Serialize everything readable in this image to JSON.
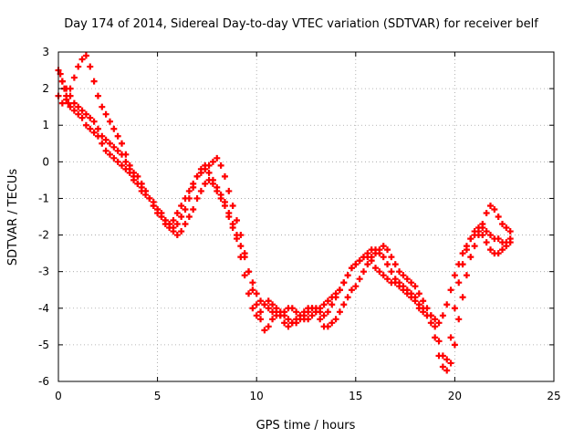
{
  "chart_data": {
    "type": "scatter",
    "title": "Day 174 of 2014, Sidereal Day-to-day VTEC variation (SDTVAR) for receiver belf",
    "xlabel": "GPS time / hours",
    "ylabel": "SDTVAR / TECUs",
    "xlim": [
      0,
      25
    ],
    "ylim": [
      -6,
      3
    ],
    "xticks": [
      "0",
      "5",
      "10",
      "15",
      "20",
      "25"
    ],
    "yticks": [
      "3",
      "2",
      "1",
      "0",
      "-1",
      "-2",
      "-3",
      "-4",
      "-5",
      "-6"
    ],
    "grid": true,
    "marker": "+",
    "color": "#ff0000",
    "series": [
      {
        "x": [
          0.0,
          0.1,
          0.2,
          0.3,
          0.4,
          0.5,
          0.6,
          0.8,
          1.0,
          1.2,
          1.4,
          1.6,
          1.8,
          2.0,
          2.2,
          2.4,
          2.6,
          2.8,
          3.0,
          3.2,
          3.4,
          3.6,
          3.8,
          4.0,
          4.2,
          4.4,
          4.6,
          4.8,
          5.0,
          5.2,
          5.4,
          5.6,
          5.8,
          6.0,
          6.2,
          6.4,
          6.6,
          6.8,
          7.0,
          7.2,
          7.4,
          7.6,
          7.8,
          8.0,
          8.2,
          8.4,
          8.6,
          8.8,
          9.0,
          9.2,
          9.4,
          9.6,
          9.8,
          10.0,
          10.2,
          10.4,
          10.6,
          10.8,
          11.0,
          11.2,
          11.4,
          11.6,
          11.8,
          12.0,
          12.2,
          12.4,
          12.6,
          12.8,
          13.0,
          13.2,
          13.4,
          13.6,
          13.8,
          14.0,
          14.2,
          14.4,
          14.6,
          14.8,
          15.0,
          15.2,
          15.4,
          15.6,
          15.8,
          16.0,
          16.2,
          16.4,
          16.6,
          16.8,
          17.0,
          17.2,
          17.4,
          17.6,
          17.8,
          18.0,
          18.2,
          18.4,
          18.6,
          18.8,
          19.0,
          19.2,
          19.4,
          19.6,
          19.8,
          20.0,
          20.2,
          20.4,
          20.6,
          20.8,
          21.0,
          21.2,
          21.4,
          21.6,
          21.8,
          22.0,
          22.2,
          22.4,
          22.6,
          22.8
        ],
        "y": [
          2.5,
          2.4,
          2.2,
          2.0,
          1.8,
          1.6,
          1.5,
          1.4,
          1.3,
          1.2,
          1.0,
          0.9,
          0.8,
          0.7,
          0.5,
          0.3,
          0.2,
          0.1,
          0.0,
          -0.1,
          -0.2,
          -0.3,
          -0.5,
          -0.6,
          -0.8,
          -0.9,
          -1.0,
          -1.2,
          -1.3,
          -1.5,
          -1.7,
          -1.8,
          -1.9,
          -2.0,
          -1.9,
          -1.7,
          -1.5,
          -1.3,
          -1.0,
          -0.8,
          -0.6,
          -0.5,
          -0.6,
          -0.8,
          -1.0,
          -1.2,
          -1.5,
          -1.8,
          -2.1,
          -2.6,
          -3.1,
          -3.6,
          -4.0,
          -4.2,
          -4.1,
          -3.9,
          -3.8,
          -3.9,
          -4.0,
          -4.1,
          -4.2,
          -4.3,
          -4.4,
          -4.4,
          -4.3,
          -4.2,
          -4.1,
          -4.0,
          -4.0,
          -4.1,
          -4.2,
          -4.1,
          -3.9,
          -3.7,
          -3.5,
          -3.3,
          -3.1,
          -2.9,
          -2.8,
          -2.7,
          -2.6,
          -2.5,
          -2.4,
          -2.4,
          -2.5,
          -2.6,
          -2.8,
          -3.0,
          -3.2,
          -3.3,
          -3.4,
          -3.5,
          -3.6,
          -3.7,
          -3.9,
          -4.0,
          -4.2,
          -4.4,
          -4.8,
          -5.3,
          -5.6,
          -5.4,
          -4.8,
          -4.0,
          -3.3,
          -2.8,
          -2.4,
          -2.1,
          -1.9,
          -1.8,
          -1.8,
          -1.9,
          -2.0,
          -2.1,
          -2.1,
          -2.2,
          -2.2,
          -2.1
        ]
      },
      {
        "x": [
          0.0,
          0.2,
          0.4,
          0.6,
          0.8,
          1.0,
          1.2,
          1.4,
          1.6,
          1.8,
          2.0,
          2.2,
          2.4,
          2.6,
          2.8,
          3.0,
          3.2,
          3.4,
          3.6,
          3.8,
          4.0,
          4.2,
          4.4,
          4.6,
          4.8,
          5.0,
          5.2,
          5.4,
          5.6,
          5.8,
          6.0,
          6.2,
          6.4,
          6.6,
          6.8,
          7.0,
          7.2,
          7.4,
          7.6,
          7.8,
          8.0,
          8.2,
          8.4,
          8.6,
          8.8,
          9.0,
          9.2,
          9.4,
          9.6,
          9.8,
          10.0,
          10.2,
          10.4,
          10.6,
          10.8,
          11.0,
          11.2,
          11.4,
          11.6,
          11.8,
          12.0,
          12.2,
          12.4,
          12.6,
          12.8,
          13.0,
          13.2,
          13.4,
          13.6,
          13.8,
          14.0,
          14.2,
          14.4,
          14.6,
          14.8,
          15.0,
          15.2,
          15.4,
          15.6,
          15.8,
          16.0,
          16.2,
          16.4,
          16.6,
          16.8,
          17.0,
          17.2,
          17.4,
          17.6,
          17.8,
          18.0,
          18.2,
          18.4,
          18.6,
          18.8,
          19.0,
          19.2,
          19.4,
          19.6,
          19.8,
          20.0,
          20.2,
          20.4,
          20.6,
          20.8,
          21.0,
          21.2,
          21.4,
          21.6,
          21.8,
          22.0,
          22.2,
          22.4,
          22.6,
          22.8
        ],
        "y": [
          1.8,
          1.6,
          1.7,
          2.0,
          2.3,
          2.6,
          2.8,
          2.9,
          2.6,
          2.2,
          1.8,
          1.5,
          1.3,
          1.1,
          0.9,
          0.7,
          0.5,
          0.2,
          -0.1,
          -0.3,
          -0.4,
          -0.6,
          -0.8,
          -1.0,
          -1.1,
          -1.3,
          -1.4,
          -1.6,
          -1.7,
          -1.8,
          -1.7,
          -1.5,
          -1.3,
          -1.0,
          -0.7,
          -0.4,
          -0.2,
          -0.1,
          -0.1,
          0.0,
          0.1,
          -0.1,
          -0.4,
          -0.8,
          -1.2,
          -1.6,
          -2.0,
          -2.5,
          -3.0,
          -3.5,
          -3.9,
          -4.3,
          -4.6,
          -4.5,
          -4.3,
          -4.1,
          -4.2,
          -4.4,
          -4.5,
          -4.4,
          -4.3,
          -4.2,
          -4.1,
          -4.0,
          -4.0,
          -4.1,
          -4.3,
          -4.5,
          -4.5,
          -4.4,
          -4.3,
          -4.1,
          -3.9,
          -3.7,
          -3.5,
          -3.4,
          -3.2,
          -3.0,
          -2.8,
          -2.6,
          -2.5,
          -2.4,
          -2.3,
          -2.4,
          -2.6,
          -2.8,
          -3.0,
          -3.1,
          -3.2,
          -3.3,
          -3.4,
          -3.6,
          -3.8,
          -4.0,
          -4.2,
          -4.5,
          -4.9,
          -5.3,
          -5.7,
          -5.5,
          -5.0,
          -4.3,
          -3.7,
          -3.1,
          -2.6,
          -2.3,
          -2.0,
          -1.7,
          -1.4,
          -1.2,
          -1.3,
          -1.5,
          -1.7,
          -1.8,
          -1.9
        ]
      },
      {
        "x": [
          0.2,
          0.4,
          0.6,
          0.8,
          1.0,
          1.2,
          1.4,
          1.6,
          1.8,
          2.0,
          2.2,
          2.4,
          2.6,
          2.8,
          3.0,
          3.2,
          3.4,
          3.6,
          3.8,
          4.0,
          4.2,
          4.4,
          4.6,
          4.8,
          5.0,
          5.2,
          5.4,
          5.6,
          5.8,
          6.0,
          6.2,
          6.4,
          6.6,
          6.8,
          7.0,
          7.2,
          7.4,
          7.6,
          7.8,
          8.0,
          8.2,
          8.4,
          8.6,
          8.8,
          9.0,
          9.2,
          9.4,
          9.6,
          9.8,
          10.0,
          10.2,
          10.4,
          10.6,
          10.8,
          11.0,
          11.2,
          11.4,
          11.6,
          11.8,
          12.0,
          12.2,
          12.4,
          12.6,
          12.8,
          13.0,
          13.2,
          13.4,
          13.6,
          13.8,
          14.0,
          14.2,
          14.4,
          14.6,
          14.8,
          15.0,
          15.2,
          15.4,
          15.6,
          15.8,
          16.0,
          16.2,
          16.4,
          16.6,
          16.8,
          17.0,
          17.2,
          17.4,
          17.6,
          17.8,
          18.0,
          18.2,
          18.4,
          18.6,
          18.8,
          19.0,
          19.2,
          19.4,
          19.6,
          19.8,
          20.0,
          20.2,
          20.4,
          20.6,
          20.8,
          21.0,
          21.2,
          21.4,
          21.6,
          21.8,
          22.0,
          22.2,
          22.4,
          22.6,
          22.8
        ],
        "y": [
          2.2,
          2.0,
          1.8,
          1.6,
          1.5,
          1.4,
          1.3,
          1.2,
          1.1,
          0.9,
          0.7,
          0.6,
          0.5,
          0.4,
          0.3,
          0.2,
          0.0,
          -0.2,
          -0.4,
          -0.6,
          -0.7,
          -0.8,
          -1.0,
          -1.2,
          -1.4,
          -1.5,
          -1.6,
          -1.7,
          -1.6,
          -1.4,
          -1.2,
          -1.0,
          -0.8,
          -0.6,
          -0.4,
          -0.3,
          -0.2,
          -0.3,
          -0.5,
          -0.7,
          -0.9,
          -1.1,
          -1.4,
          -1.7,
          -2.0,
          -2.3,
          -2.6,
          -3.0,
          -3.3,
          -3.6,
          -3.8,
          -3.9,
          -4.0,
          -4.1,
          -4.2,
          -4.2,
          -4.1,
          -4.0,
          -4.0,
          -4.1,
          -4.2,
          -4.3,
          -4.3,
          -4.2,
          -4.1,
          -4.0,
          -3.9,
          -3.8,
          -3.7,
          -3.6,
          -3.5,
          -3.3,
          -3.1,
          -2.9,
          -2.8,
          -2.7,
          -2.6,
          -2.6,
          -2.7,
          -2.9,
          -3.0,
          -3.1,
          -3.2,
          -3.3,
          -3.3,
          -3.4,
          -3.5,
          -3.6,
          -3.7,
          -3.8,
          -4.0,
          -4.1,
          -4.2,
          -4.2,
          -4.3,
          -4.4,
          -4.2,
          -3.9,
          -3.5,
          -3.1,
          -2.8,
          -2.5,
          -2.3,
          -2.1,
          -2.0,
          -1.9,
          -2.0,
          -2.2,
          -2.4,
          -2.5,
          -2.5,
          -2.4,
          -2.3,
          -2.2
        ]
      }
    ]
  }
}
